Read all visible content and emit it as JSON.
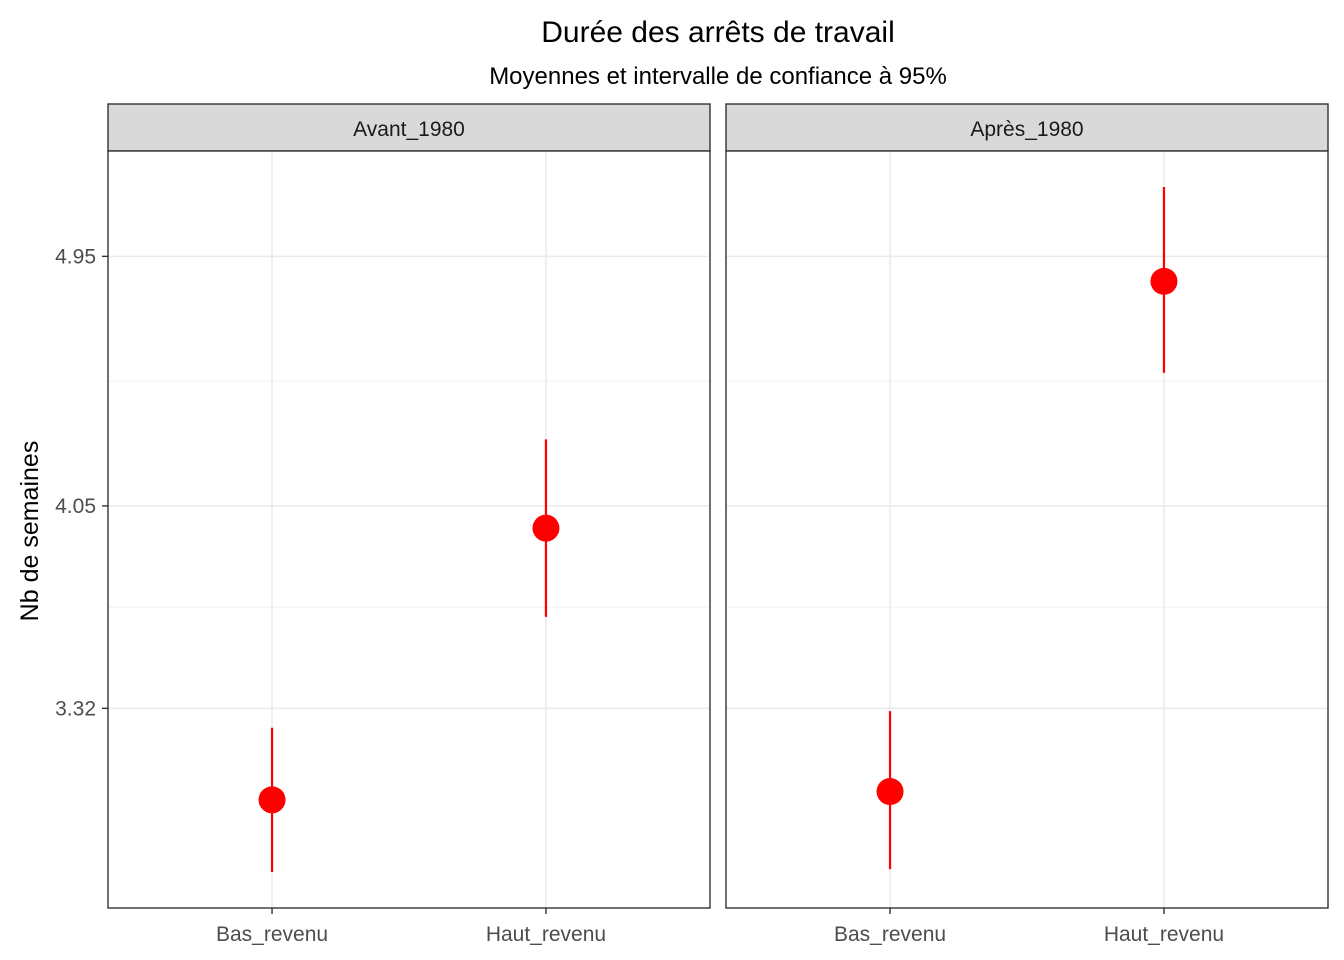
{
  "chart_data": {
    "type": "errorbar",
    "title": "Durée des arrêts de travail",
    "subtitle": "Moyennes et intervalle de confiance à 95%",
    "xlabel": "",
    "ylabel": "Nb de semaines",
    "categories": [
      "Bas_revenu",
      "Haut_revenu"
    ],
    "ylim": [
      2.6,
      5.33
    ],
    "y_ticks": [
      3.32,
      4.05,
      4.95
    ],
    "y_minor_ticks": [
      3.685,
      4.5
    ],
    "y_tick_labels": [
      "3.32",
      "4.05",
      "4.95"
    ],
    "grid": true,
    "point_color": "#ff0000",
    "panels": [
      {
        "label": "Avant_1980",
        "points": [
          {
            "category": "Bas_revenu",
            "mean": 2.99,
            "lower": 2.73,
            "upper": 3.25
          },
          {
            "category": "Haut_revenu",
            "mean": 3.97,
            "lower": 3.65,
            "upper": 4.29
          }
        ]
      },
      {
        "label": "Après_1980",
        "points": [
          {
            "category": "Bas_revenu",
            "mean": 3.02,
            "lower": 2.74,
            "upper": 3.31
          },
          {
            "category": "Haut_revenu",
            "mean": 4.86,
            "lower": 4.53,
            "upper": 5.2
          }
        ]
      }
    ]
  }
}
